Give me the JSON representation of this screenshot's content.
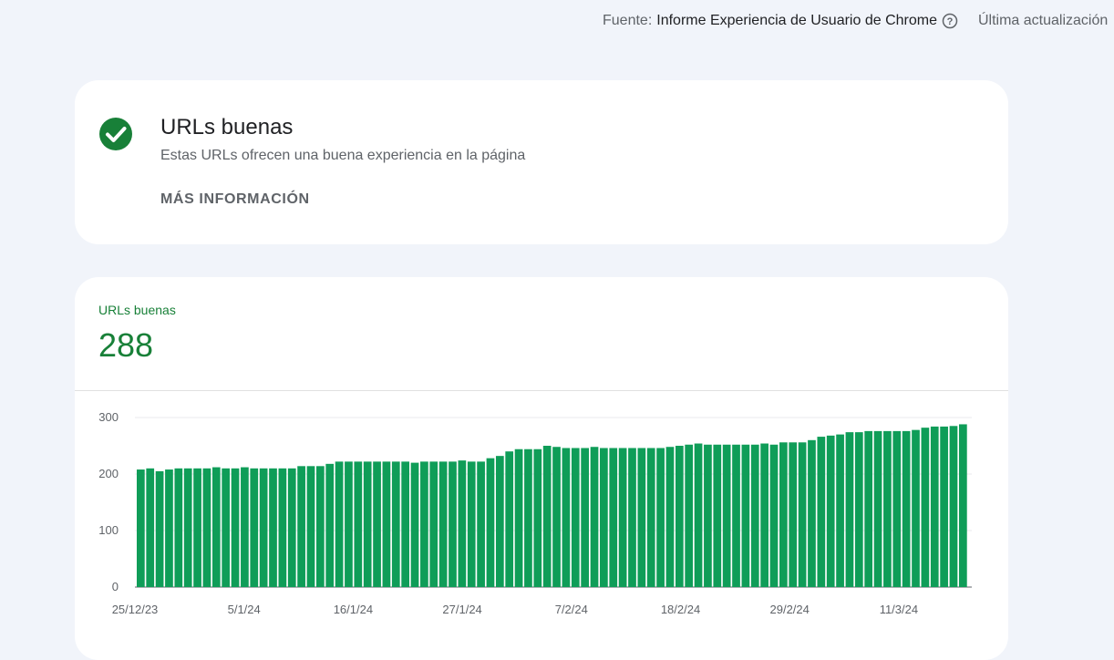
{
  "header": {
    "source_label": "Fuente:",
    "source_value": "Informe Experiencia de Usuario de Chrome",
    "help_icon": "help-circle-icon",
    "last_update": "Última actualización"
  },
  "status_card": {
    "icon": "check-circle-icon",
    "icon_color": "#188038",
    "title": "URLs buenas",
    "description": "Estas URLs ofrecen una buena experiencia en la página",
    "more_info": "MÁS INFORMACIÓN"
  },
  "metric": {
    "label": "URLs buenas",
    "value": "288",
    "color": "#188038"
  },
  "chart_data": {
    "type": "bar",
    "bar_color": "#0f9d58",
    "y_ticks": [
      "0",
      "100",
      "200",
      "300"
    ],
    "ylim": [
      0,
      300
    ],
    "grid": true,
    "x_tick_labels": [
      "25/12/23",
      "5/1/24",
      "16/1/24",
      "27/1/24",
      "7/2/24",
      "18/2/24",
      "29/2/24",
      "11/3/24"
    ],
    "values": [
      208,
      210,
      205,
      208,
      210,
      210,
      210,
      210,
      212,
      210,
      210,
      212,
      210,
      210,
      210,
      210,
      210,
      214,
      214,
      214,
      218,
      222,
      222,
      222,
      222,
      222,
      222,
      222,
      222,
      220,
      222,
      222,
      222,
      222,
      224,
      222,
      222,
      228,
      232,
      240,
      244,
      244,
      244,
      250,
      248,
      246,
      246,
      246,
      248,
      246,
      246,
      246,
      246,
      246,
      246,
      246,
      248,
      250,
      252,
      254,
      252,
      252,
      252,
      252,
      252,
      252,
      254,
      252,
      256,
      256,
      256,
      260,
      266,
      268,
      270,
      274,
      274,
      276,
      276,
      276,
      276,
      276,
      278,
      282,
      284,
      284,
      285,
      288
    ]
  }
}
